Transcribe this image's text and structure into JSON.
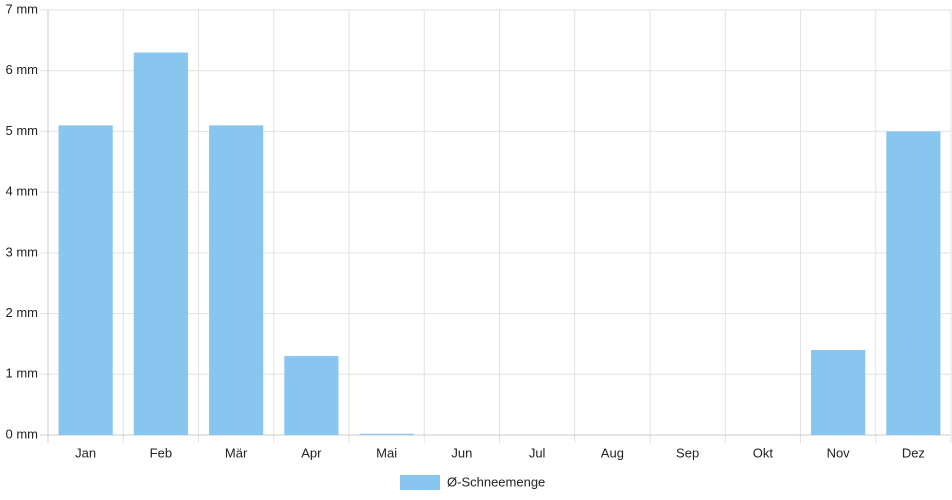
{
  "chart_data": {
    "type": "bar",
    "categories": [
      "Jan",
      "Feb",
      "Mär",
      "Apr",
      "Mai",
      "Jun",
      "Jul",
      "Aug",
      "Sep",
      "Okt",
      "Nov",
      "Dez"
    ],
    "series": [
      {
        "name": "Ø-Schneemenge",
        "color": "#88c6f0",
        "values": [
          5.1,
          6.3,
          5.1,
          1.3,
          0.02,
          0,
          0,
          0,
          0,
          0,
          1.4,
          5.0
        ]
      }
    ],
    "ylim": [
      0,
      7
    ],
    "yticks": [
      {
        "value": 0,
        "label": "0 mm"
      },
      {
        "value": 1,
        "label": "1 mm"
      },
      {
        "value": 2,
        "label": "2 mm"
      },
      {
        "value": 3,
        "label": "3 mm"
      },
      {
        "value": 4,
        "label": "4 mm"
      },
      {
        "value": 5,
        "label": "5 mm"
      },
      {
        "value": 6,
        "label": "6 mm"
      },
      {
        "value": 7,
        "label": "7 mm"
      }
    ],
    "grid": true,
    "legend": "bottom"
  }
}
